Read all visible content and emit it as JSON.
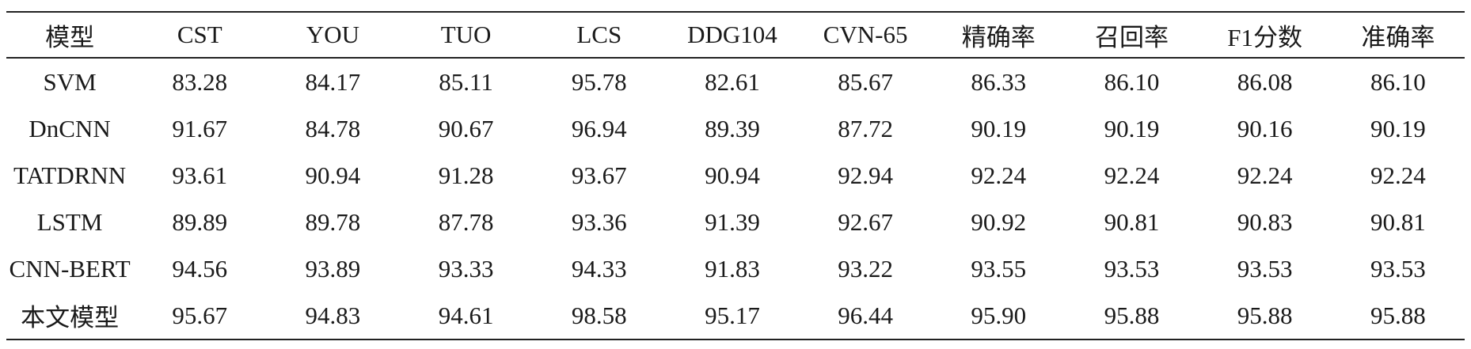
{
  "table": {
    "headers": [
      "模型",
      "CST",
      "YOU",
      "TUO",
      "LCS",
      "DDG104",
      "CVN-65",
      "精确率",
      "召回率",
      "F1分数",
      "准确率"
    ],
    "rows": [
      [
        "SVM",
        "83.28",
        "84.17",
        "85.11",
        "95.78",
        "82.61",
        "85.67",
        "86.33",
        "86.10",
        "86.08",
        "86.10"
      ],
      [
        "DnCNN",
        "91.67",
        "84.78",
        "90.67",
        "96.94",
        "89.39",
        "87.72",
        "90.19",
        "90.19",
        "90.16",
        "90.19"
      ],
      [
        "TATDRNN",
        "93.61",
        "90.94",
        "91.28",
        "93.67",
        "90.94",
        "92.94",
        "92.24",
        "92.24",
        "92.24",
        "92.24"
      ],
      [
        "LSTM",
        "89.89",
        "89.78",
        "87.78",
        "93.36",
        "91.39",
        "92.67",
        "90.92",
        "90.81",
        "90.83",
        "90.81"
      ],
      [
        "CNN-BERT",
        "94.56",
        "93.89",
        "93.33",
        "94.33",
        "91.83",
        "93.22",
        "93.55",
        "93.53",
        "93.53",
        "93.53"
      ],
      [
        "本文模型",
        "95.67",
        "94.83",
        "94.61",
        "98.58",
        "95.17",
        "96.44",
        "95.90",
        "95.88",
        "95.88",
        "95.88"
      ]
    ]
  }
}
